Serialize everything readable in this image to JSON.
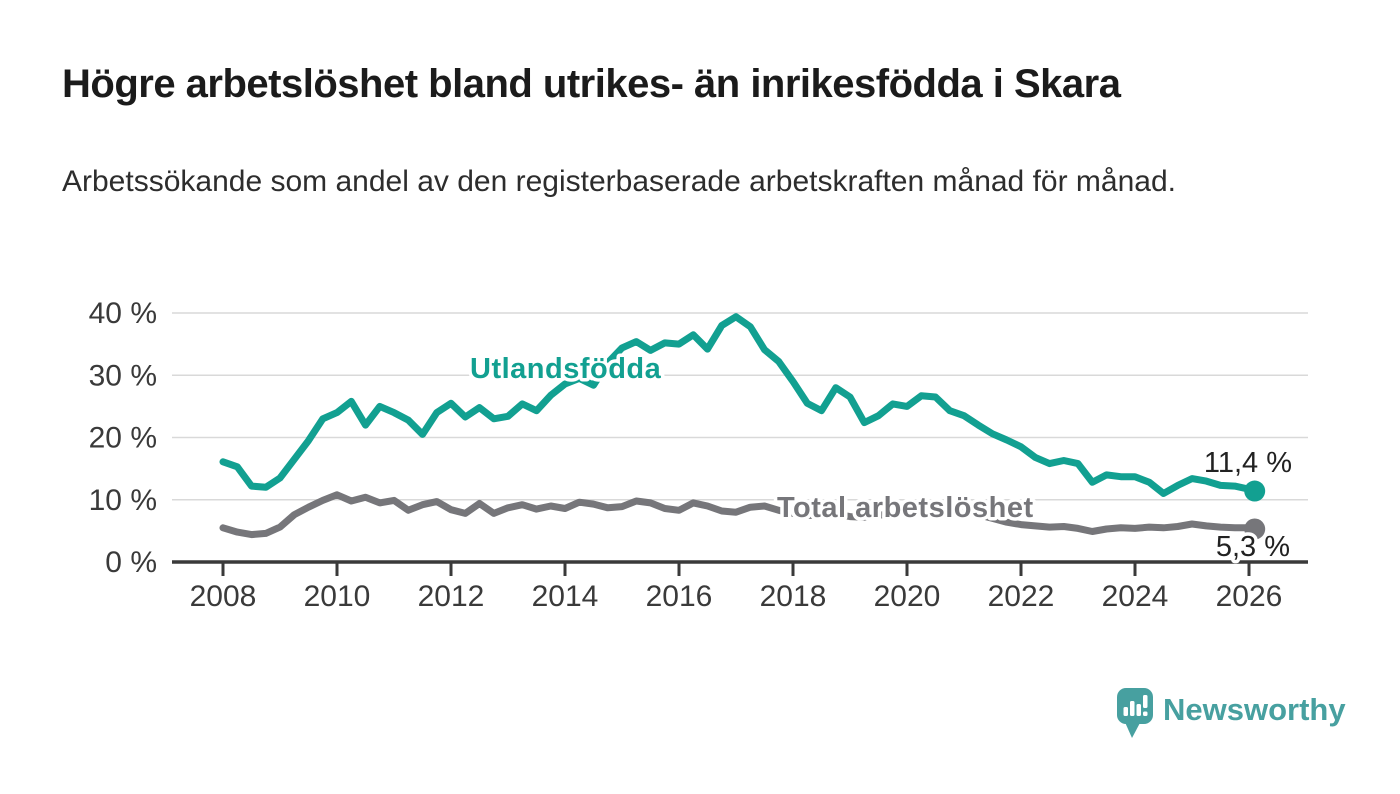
{
  "title": "Högre arbetslöshet bland utrikes- än inrikesfödda i Skara",
  "subtitle": "Arbetssökande som andel av den registerbaserade arbetskraften månad för månad.",
  "footer": {
    "brand": "Newsworthy"
  },
  "colors": {
    "series_foreign_born": "#12a091",
    "series_total": "#76767a",
    "axis_text": "#3a3a3a",
    "gridline": "#d9d9d9",
    "brand_teal": "#47a0a0"
  },
  "chart_data": {
    "type": "line",
    "title": "Högre arbetslöshet bland utrikes- än inrikesfödda i Skara",
    "xlabel": "",
    "ylabel": "",
    "x_ticks": [
      2008,
      2010,
      2012,
      2014,
      2016,
      2018,
      2020,
      2022,
      2024,
      2026
    ],
    "y_ticks": [
      {
        "value": 0,
        "label": "0 %"
      },
      {
        "value": 10,
        "label": "10 %"
      },
      {
        "value": 20,
        "label": "20 %"
      },
      {
        "value": 30,
        "label": "30 %"
      },
      {
        "value": 40,
        "label": "40 %"
      }
    ],
    "ylim": [
      0,
      43
    ],
    "xlim": [
      2007.1,
      2027.0
    ],
    "grid": "horizontal",
    "legend_position": "inline-labels",
    "series": [
      {
        "name": "Utlandsfödda",
        "color": "#12a091",
        "end_label": "11,4 %",
        "x_start": 2008.0,
        "x_step": 0.25,
        "end_x": 2026.1,
        "end_value": 11.4,
        "values": [
          16.1,
          15.3,
          12.2,
          12.0,
          13.5,
          16.5,
          19.5,
          23.0,
          24.0,
          25.8,
          22.0,
          25.0,
          24.0,
          22.8,
          20.5,
          24.0,
          25.5,
          23.3,
          24.8,
          23.0,
          23.4,
          25.4,
          24.3,
          26.8,
          28.6,
          29.5,
          28.4,
          32.0,
          34.4,
          35.4,
          34.0,
          35.2,
          35.0,
          36.5,
          34.2,
          38.0,
          39.4,
          37.8,
          34.1,
          32.2,
          29.0,
          25.5,
          24.3,
          28.0,
          26.5,
          22.4,
          23.5,
          25.4,
          25.0,
          26.7,
          26.5,
          24.3,
          23.5,
          22.0,
          20.6,
          19.6,
          18.5,
          16.8,
          15.8,
          16.3,
          15.8,
          12.8,
          14.0,
          13.7,
          13.7,
          12.8,
          11.0,
          12.3,
          13.4,
          13.0,
          12.3,
          12.2,
          11.7
        ]
      },
      {
        "name": "Total arbetslöshet",
        "color": "#76767a",
        "end_label": "5,3 %",
        "x_start": 2008.0,
        "x_step": 0.25,
        "end_x": 2026.1,
        "end_value": 5.3,
        "values": [
          5.5,
          4.8,
          4.4,
          4.6,
          5.6,
          7.6,
          8.8,
          9.9,
          10.8,
          9.8,
          10.4,
          9.5,
          9.9,
          8.3,
          9.2,
          9.7,
          8.4,
          7.8,
          9.4,
          7.8,
          8.7,
          9.2,
          8.5,
          9.0,
          8.6,
          9.6,
          9.3,
          8.7,
          8.9,
          9.8,
          9.5,
          8.6,
          8.3,
          9.5,
          9.0,
          8.2,
          8.0,
          8.8,
          9.0,
          8.3,
          7.8,
          7.5,
          7.4,
          7.7,
          7.3,
          7.2,
          7.5,
          7.8,
          8.3,
          9.3,
          9.1,
          8.6,
          8.2,
          7.6,
          7.0,
          6.4,
          6.0,
          5.8,
          5.6,
          5.7,
          5.4,
          4.9,
          5.3,
          5.5,
          5.4,
          5.6,
          5.5,
          5.7,
          6.1,
          5.8,
          5.6,
          5.5,
          5.5
        ]
      }
    ]
  }
}
